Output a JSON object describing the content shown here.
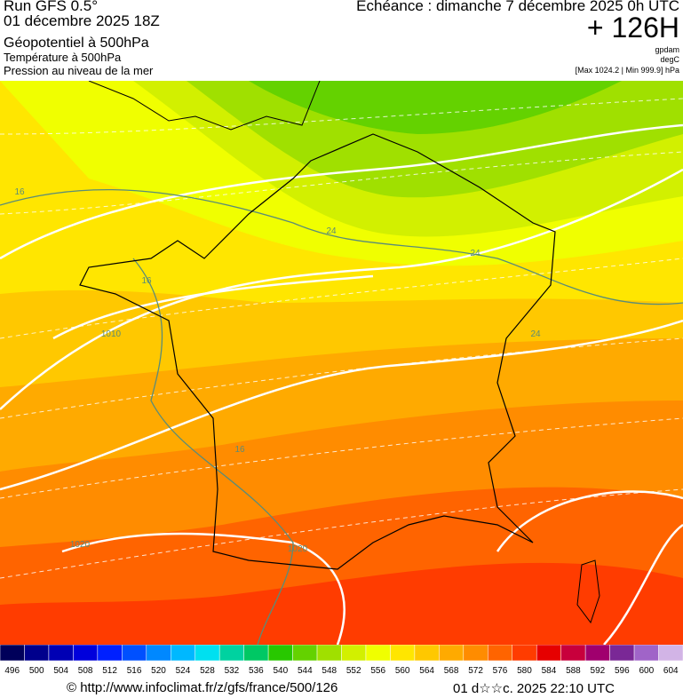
{
  "header": {
    "run": "Run GFS 0.5°",
    "date": "01 décembre 2025 18Z",
    "field1": "Géopotentiel à 500hPa",
    "field2": "Température à 500hPa",
    "field3": "Pression au niveau de la mer",
    "valid": "Echéance : dimanche 7 décembre 2025 0h UTC",
    "lead": "+ 126H",
    "unit1": "gpdam",
    "unit2": "degC",
    "range": "[Max 1024.2 | Min 999.9] hPa"
  },
  "map": {
    "contour_labels": [
      "16",
      "24",
      "24",
      "16",
      "1010",
      "24",
      "16",
      "1020",
      "1020"
    ]
  },
  "colorbar": {
    "labels": [
      "496",
      "500",
      "504",
      "508",
      "512",
      "516",
      "520",
      "524",
      "528",
      "532",
      "536",
      "540",
      "544",
      "548",
      "552",
      "556",
      "560",
      "564",
      "568",
      "572",
      "576",
      "580",
      "584",
      "588",
      "592",
      "596",
      "600",
      "604"
    ],
    "colors": [
      "#00005a",
      "#00008c",
      "#0000b4",
      "#0000dc",
      "#0020ff",
      "#0050ff",
      "#0088ff",
      "#00b8ff",
      "#00e0f0",
      "#00d2a0",
      "#00c864",
      "#28c800",
      "#64d200",
      "#a0e000",
      "#d2f000",
      "#f0ff00",
      "#ffe600",
      "#ffc800",
      "#ffaa00",
      "#ff8c00",
      "#ff6400",
      "#ff3c00",
      "#e60000",
      "#c8003c",
      "#a0006e",
      "#7a2896",
      "#a064c8",
      "#d2b4e6"
    ]
  },
  "footer": {
    "url": "© http://www.infoclimat.fr/z/gfs/france/500/126",
    "stamp": "01 d☆☆c. 2025 22:10 UTC"
  }
}
